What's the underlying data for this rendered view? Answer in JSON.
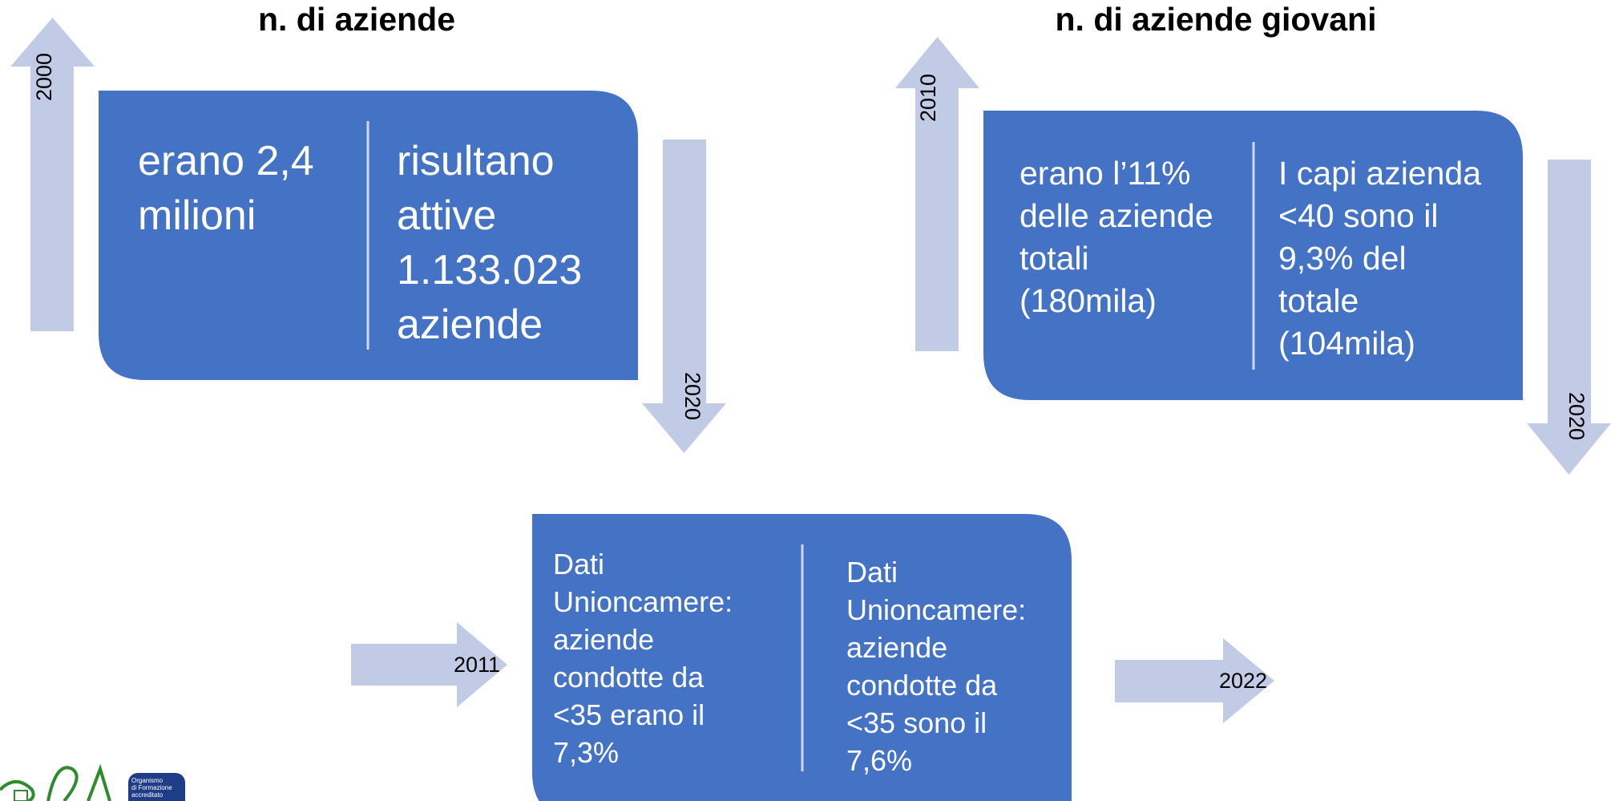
{
  "panels": [
    {
      "title": "n. di aziende",
      "start_year": "2000",
      "end_year": "2020",
      "left_text": [
        "erano 2,4",
        "milioni"
      ],
      "right_text": [
        "risultano",
        "attive",
        "1.133.023",
        "aziende"
      ]
    },
    {
      "title": "n. di aziende giovani",
      "start_year": "2010",
      "end_year": "2020",
      "left_text": [
        "erano l’11%",
        "delle aziende",
        "totali",
        "(180mila)"
      ],
      "right_text": [
        "I capi azienda",
        "<40 sono il",
        "9,3% del",
        "totale",
        "(104mila)"
      ]
    },
    {
      "start_year": "2011",
      "end_year": "2022",
      "left_text": [
        "Dati",
        "Unioncamere:",
        "aziende",
        "condotte da",
        "<35 erano il",
        "7,3%"
      ],
      "right_text": [
        "Dati",
        "Unioncamere:",
        "aziende",
        "condotte da",
        "<35 sono il",
        "7,6%"
      ]
    }
  ],
  "logo": {
    "label": [
      "Organismo",
      "di Formazione",
      "accreditato"
    ]
  }
}
